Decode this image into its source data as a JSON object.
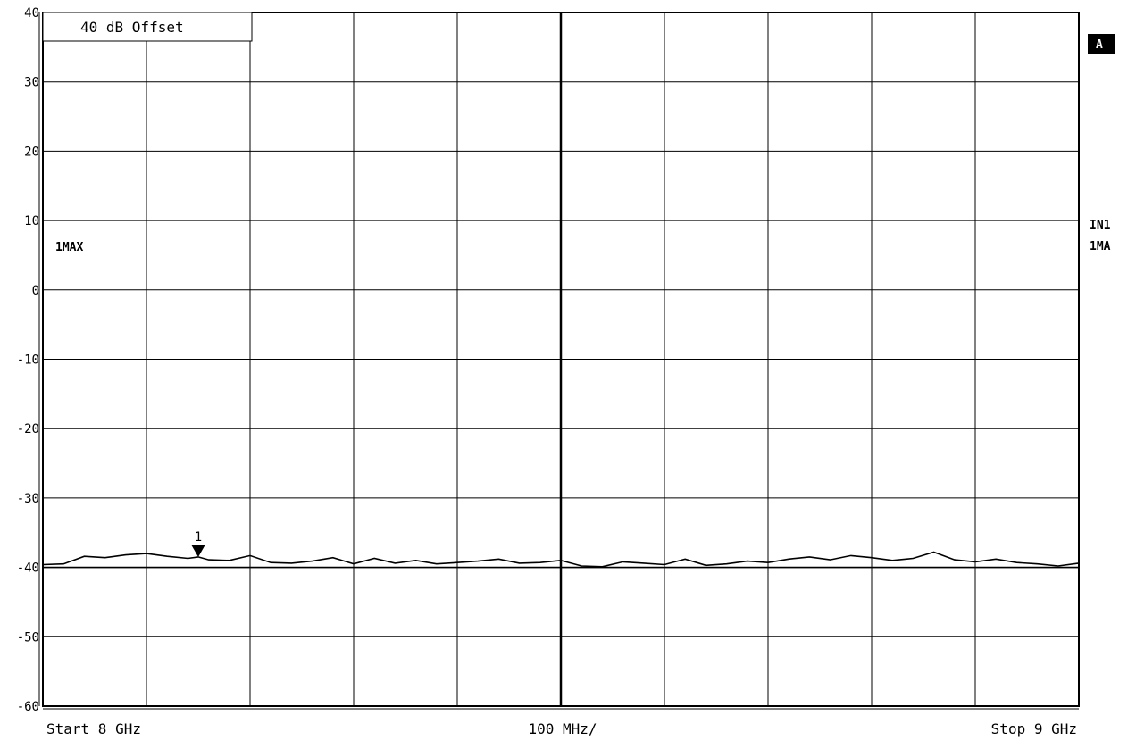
{
  "chart_data": {
    "type": "line",
    "title": "",
    "xlabel": "",
    "ylabel": "",
    "x_unit": "GHz",
    "xlim": [
      8,
      9
    ],
    "ylim": [
      -60,
      40
    ],
    "y_ticks": [
      40,
      30,
      20,
      10,
      0,
      -10,
      -20,
      -30,
      -40,
      -50,
      -60
    ],
    "y_tick_labels": [
      "40",
      "30",
      "20",
      "10",
      "0",
      "-10",
      "-20",
      "-30",
      "-40",
      "-50",
      "-60"
    ],
    "grid": true,
    "reference_line_y": -40,
    "marker": {
      "label": "1",
      "x": 8.15,
      "y": -38.5
    },
    "series": [
      {
        "x": [
          8.0,
          8.02,
          8.04,
          8.06,
          8.08,
          8.1,
          8.12,
          8.14,
          8.15,
          8.16,
          8.18,
          8.2,
          8.22,
          8.24,
          8.26,
          8.28,
          8.3,
          8.32,
          8.34,
          8.36,
          8.38,
          8.4,
          8.42,
          8.44,
          8.46,
          8.48,
          8.5,
          8.52,
          8.54,
          8.56,
          8.58,
          8.6,
          8.62,
          8.64,
          8.66,
          8.68,
          8.7,
          8.72,
          8.74,
          8.76,
          8.78,
          8.8,
          8.82,
          8.84,
          8.86,
          8.88,
          8.9,
          8.92,
          8.94,
          8.96,
          8.98,
          9.0
        ],
        "y": [
          -39.6,
          -39.5,
          -38.4,
          -38.6,
          -38.2,
          -38.0,
          -38.4,
          -38.7,
          -38.5,
          -38.9,
          -39.0,
          -38.3,
          -39.3,
          -39.4,
          -39.1,
          -38.6,
          -39.5,
          -38.7,
          -39.4,
          -39.0,
          -39.5,
          -39.3,
          -39.1,
          -38.8,
          -39.4,
          -39.3,
          -39.0,
          -39.8,
          -39.9,
          -39.2,
          -39.4,
          -39.6,
          -38.8,
          -39.7,
          -39.5,
          -39.1,
          -39.3,
          -38.8,
          -38.5,
          -38.9,
          -38.3,
          -38.6,
          -39.0,
          -38.7,
          -37.8,
          -38.9,
          -39.2,
          -38.8,
          -39.3,
          -39.5,
          -39.8,
          -39.4
        ]
      }
    ]
  },
  "annotations": {
    "offset_label": "40 dB Offset",
    "trace_label_left": "1MAX",
    "side_box": "A",
    "side_in": "IN1",
    "side_ma": "1MA",
    "start": "Start 8 GHz",
    "center": "100 MHz/",
    "stop": "Stop 9 GHz"
  }
}
